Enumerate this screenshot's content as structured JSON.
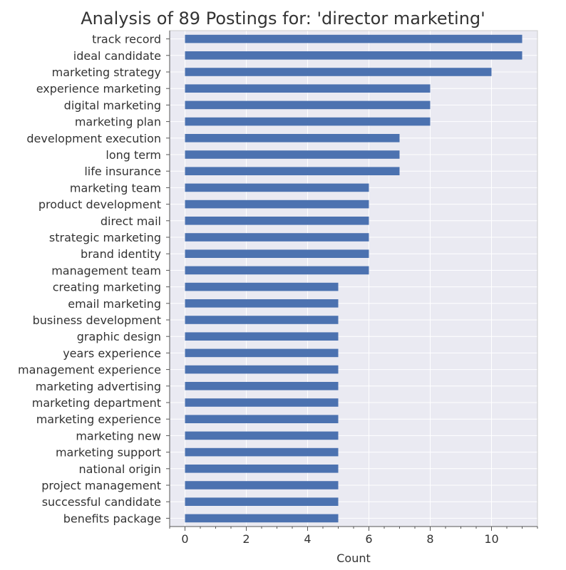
{
  "chart_data": {
    "type": "bar",
    "orientation": "horizontal",
    "title": "Analysis of 89 Postings for: 'director marketing'",
    "xlabel": "Count",
    "ylabel": "",
    "xlim": [
      -0.5,
      11.5
    ],
    "xticks": [
      0,
      2,
      4,
      6,
      8,
      10
    ],
    "grid": true,
    "colors": {
      "bar": "#4c72b0",
      "plot_bg": "#eaeaf2",
      "grid": "#ffffff",
      "text": "#333333",
      "axis": "#555555"
    },
    "categories": [
      "track record",
      "ideal candidate",
      "marketing strategy",
      "experience marketing",
      "digital marketing",
      "marketing plan",
      "development execution",
      "long term",
      "life insurance",
      "marketing team",
      "product development",
      "direct mail",
      "strategic marketing",
      "brand identity",
      "management team",
      "creating marketing",
      "email marketing",
      "business development",
      "graphic design",
      "years experience",
      "management experience",
      "marketing advertising",
      "marketing department",
      "marketing experience",
      "marketing new",
      "marketing support",
      "national origin",
      "project management",
      "successful candidate",
      "benefits package"
    ],
    "values": [
      11,
      11,
      10,
      8,
      8,
      8,
      7,
      7,
      7,
      6,
      6,
      6,
      6,
      6,
      6,
      5,
      5,
      5,
      5,
      5,
      5,
      5,
      5,
      5,
      5,
      5,
      5,
      5,
      5,
      5
    ]
  }
}
